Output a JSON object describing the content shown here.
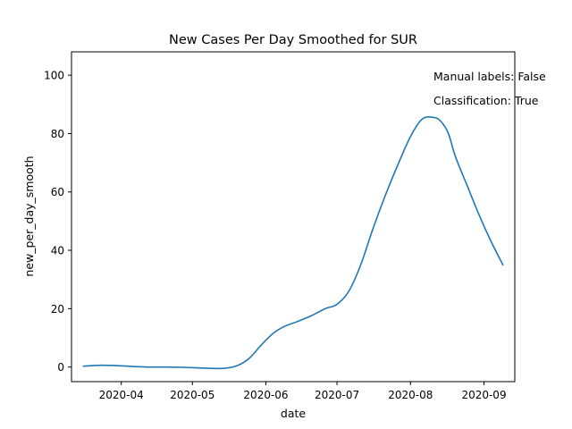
{
  "chart_data": {
    "type": "line",
    "title": "New Cases Per Day Smoothed for SUR",
    "xlabel": "date",
    "ylabel": "new_per_day_smooth",
    "xlim": [
      "2020-03-11",
      "2020-09-14"
    ],
    "ylim": [
      -5,
      108
    ],
    "x_ticks": [
      "2020-04",
      "2020-05",
      "2020-06",
      "2020-07",
      "2020-08",
      "2020-09"
    ],
    "y_ticks": [
      "0",
      "20",
      "40",
      "60",
      "80",
      "100"
    ],
    "grid": false,
    "legend": "none",
    "annotations": [
      "Manual labels: False",
      "Classification: True"
    ],
    "line_color": "#1f77b4",
    "series": [
      {
        "x": [
          "2020-03-16",
          "2020-03-23",
          "2020-03-30",
          "2020-04-06",
          "2020-04-13",
          "2020-04-20",
          "2020-04-27",
          "2020-05-04",
          "2020-05-11",
          "2020-05-15",
          "2020-05-20",
          "2020-05-25",
          "2020-05-30",
          "2020-06-04",
          "2020-06-09",
          "2020-06-14",
          "2020-06-20",
          "2020-06-26",
          "2020-07-01",
          "2020-07-06",
          "2020-07-11",
          "2020-07-16",
          "2020-07-21",
          "2020-07-26",
          "2020-08-01",
          "2020-08-06",
          "2020-08-11",
          "2020-08-14",
          "2020-08-17",
          "2020-08-20",
          "2020-08-25",
          "2020-08-30",
          "2020-09-04",
          "2020-09-09"
        ],
        "y": [
          0.3,
          0.6,
          0.5,
          0.2,
          0.0,
          0.0,
          -0.1,
          -0.3,
          -0.5,
          -0.4,
          0.5,
          3,
          7.5,
          11.5,
          14,
          15.5,
          17.5,
          20,
          21.5,
          26,
          35,
          47,
          58,
          68,
          79,
          85,
          85.5,
          84,
          80,
          72,
          62,
          52,
          43,
          35
        ]
      }
    ]
  }
}
